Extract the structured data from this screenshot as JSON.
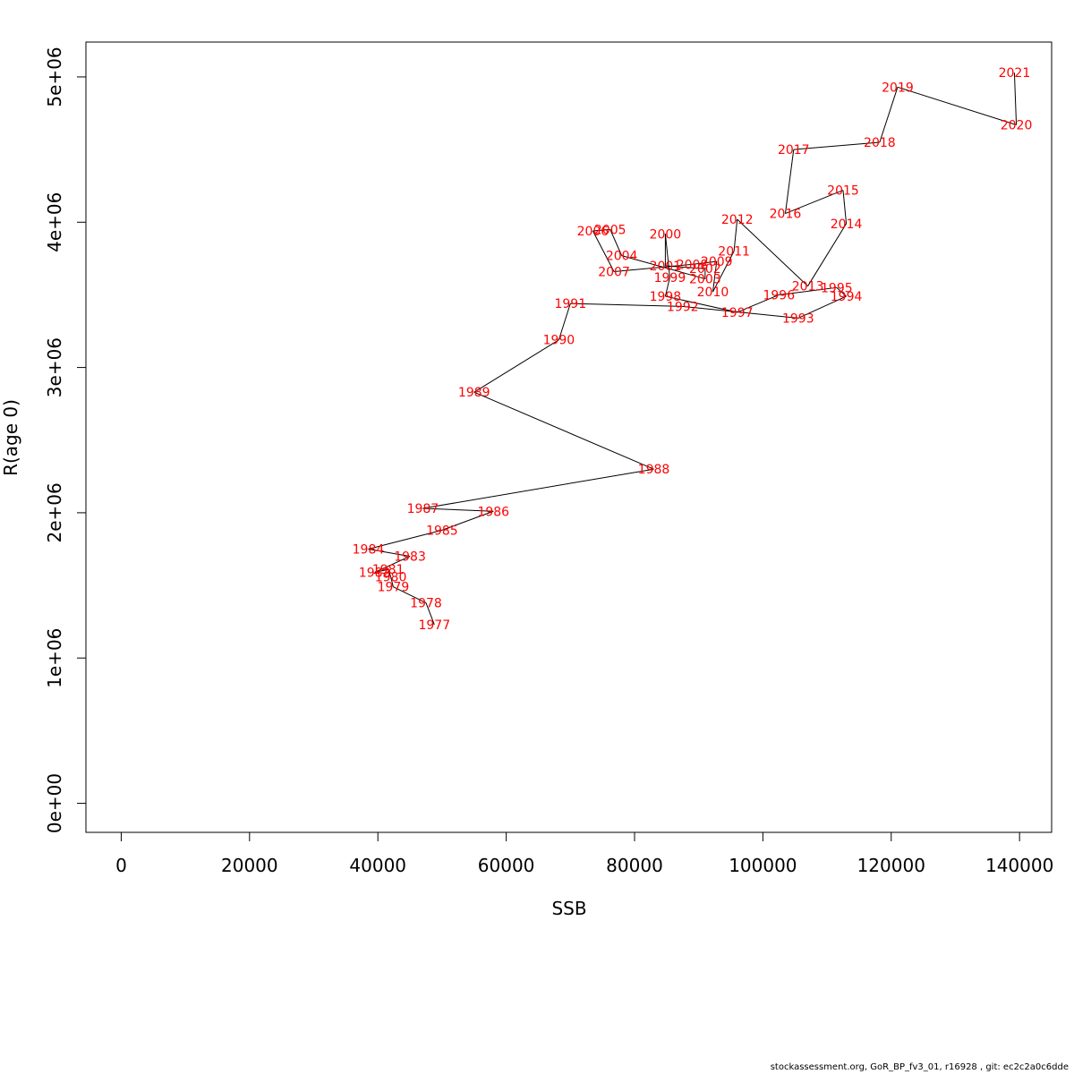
{
  "chart_data": {
    "type": "line",
    "xlabel": "SSB",
    "ylabel": "R(age 0)",
    "xlim": [
      -5500,
      145000
    ],
    "ylim": [
      -200000,
      5240000
    ],
    "x_ticks": [
      0,
      20000,
      40000,
      60000,
      80000,
      100000,
      120000,
      140000
    ],
    "x_tick_labels": [
      "0",
      "20000",
      "40000",
      "60000",
      "80000",
      "100000",
      "120000",
      "140000"
    ],
    "y_ticks": [
      0,
      1000000,
      2000000,
      3000000,
      4000000,
      5000000
    ],
    "y_tick_labels": [
      "0e+00",
      "1e+06",
      "2e+06",
      "3e+06",
      "4e+06",
      "5e+06"
    ],
    "line_color": "#000000",
    "label_color": "#ff0000",
    "grid": false,
    "points": [
      {
        "label": "1977",
        "x": 48800,
        "y": 1230000
      },
      {
        "label": "1978",
        "x": 47500,
        "y": 1380000
      },
      {
        "label": "1979",
        "x": 42400,
        "y": 1490000
      },
      {
        "label": "1980",
        "x": 42000,
        "y": 1560000
      },
      {
        "label": "1981",
        "x": 41600,
        "y": 1610000
      },
      {
        "label": "1982",
        "x": 39500,
        "y": 1590000
      },
      {
        "label": "1983",
        "x": 45000,
        "y": 1700000
      },
      {
        "label": "1984",
        "x": 38500,
        "y": 1750000
      },
      {
        "label": "1985",
        "x": 50000,
        "y": 1880000
      },
      {
        "label": "1986",
        "x": 58000,
        "y": 2010000
      },
      {
        "label": "1987",
        "x": 47000,
        "y": 2030000
      },
      {
        "label": "1988",
        "x": 83000,
        "y": 2300000
      },
      {
        "label": "1989",
        "x": 55000,
        "y": 2830000
      },
      {
        "label": "1990",
        "x": 68200,
        "y": 3190000
      },
      {
        "label": "1991",
        "x": 70000,
        "y": 3440000
      },
      {
        "label": "1992",
        "x": 87500,
        "y": 3420000
      },
      {
        "label": "1993",
        "x": 105500,
        "y": 3340000
      },
      {
        "label": "1994",
        "x": 113000,
        "y": 3490000
      },
      {
        "label": "1995",
        "x": 111500,
        "y": 3550000
      },
      {
        "label": "1996",
        "x": 102500,
        "y": 3500000
      },
      {
        "label": "1997",
        "x": 96000,
        "y": 3380000
      },
      {
        "label": "1998",
        "x": 84800,
        "y": 3490000
      },
      {
        "label": "1999",
        "x": 85500,
        "y": 3620000
      },
      {
        "label": "2000",
        "x": 84800,
        "y": 3920000
      },
      {
        "label": "2001",
        "x": 84800,
        "y": 3700000
      },
      {
        "label": "2002",
        "x": 91000,
        "y": 3680000
      },
      {
        "label": "2003",
        "x": 91000,
        "y": 3610000
      },
      {
        "label": "2004",
        "x": 78000,
        "y": 3770000
      },
      {
        "label": "2005",
        "x": 76200,
        "y": 3950000
      },
      {
        "label": "2006",
        "x": 73500,
        "y": 3940000
      },
      {
        "label": "2007",
        "x": 76800,
        "y": 3660000
      },
      {
        "label": "2008",
        "x": 89000,
        "y": 3710000
      },
      {
        "label": "2009",
        "x": 92800,
        "y": 3730000
      },
      {
        "label": "2010",
        "x": 92200,
        "y": 3520000
      },
      {
        "label": "2011",
        "x": 95500,
        "y": 3800000
      },
      {
        "label": "2012",
        "x": 96000,
        "y": 4020000
      },
      {
        "label": "2013",
        "x": 107000,
        "y": 3560000
      },
      {
        "label": "2014",
        "x": 113000,
        "y": 3990000
      },
      {
        "label": "2015",
        "x": 112500,
        "y": 4220000
      },
      {
        "label": "2016",
        "x": 103500,
        "y": 4060000
      },
      {
        "label": "2017",
        "x": 104800,
        "y": 4500000
      },
      {
        "label": "2018",
        "x": 118200,
        "y": 4550000
      },
      {
        "label": "2019",
        "x": 121000,
        "y": 4930000
      },
      {
        "label": "2020",
        "x": 139500,
        "y": 4670000
      },
      {
        "label": "2021",
        "x": 139200,
        "y": 5030000
      }
    ]
  },
  "footer": "stockassessment.org, GoR_BP_fv3_01, r16928 , git: ec2c2a0c6dde"
}
